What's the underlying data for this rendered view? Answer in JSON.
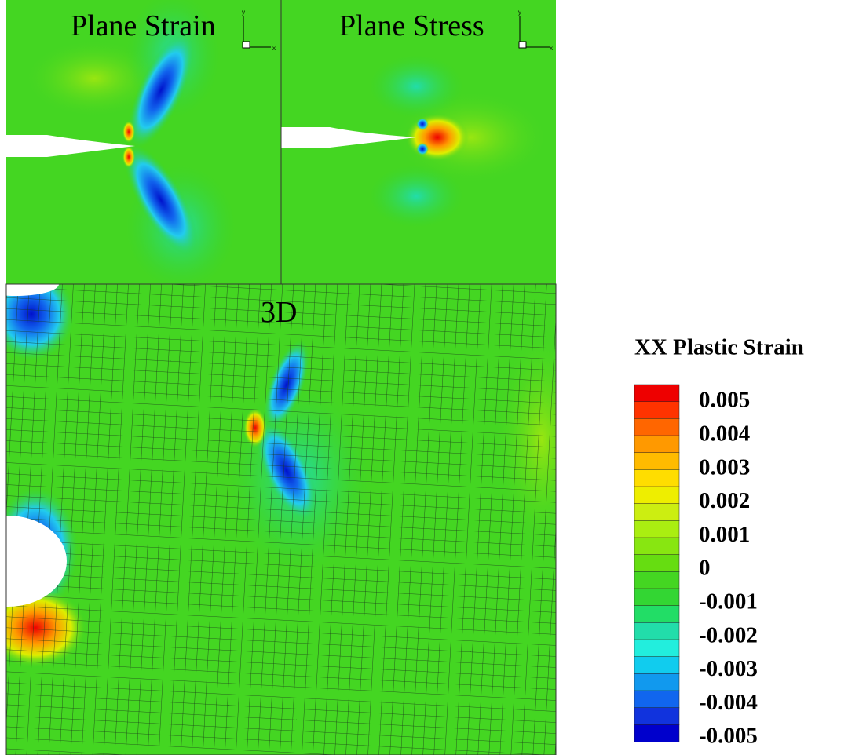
{
  "panels": [
    {
      "title": "Plane Strain"
    },
    {
      "title": "Plane Stress"
    },
    {
      "title": "3D"
    }
  ],
  "axes_triad": {
    "x": "x",
    "y": "y"
  },
  "colorbar": {
    "title": "XX Plastic Strain",
    "labels": [
      "0.005",
      "0.004",
      "0.003",
      "0.002",
      "0.001",
      "0",
      "-0.001",
      "-0.002",
      "-0.003",
      "-0.004",
      "-0.005"
    ],
    "colors": [
      "#ee0000",
      "#ff3300",
      "#ff6600",
      "#ff9900",
      "#ffbb00",
      "#ffdd00",
      "#eeee00",
      "#ccee11",
      "#aaee11",
      "#88e611",
      "#66dd11",
      "#44d622",
      "#33d633",
      "#22dd66",
      "#22ddaa",
      "#22eedd",
      "#11ccee",
      "#1199ee",
      "#1166ee",
      "#1133dd",
      "#0000cc"
    ]
  }
}
